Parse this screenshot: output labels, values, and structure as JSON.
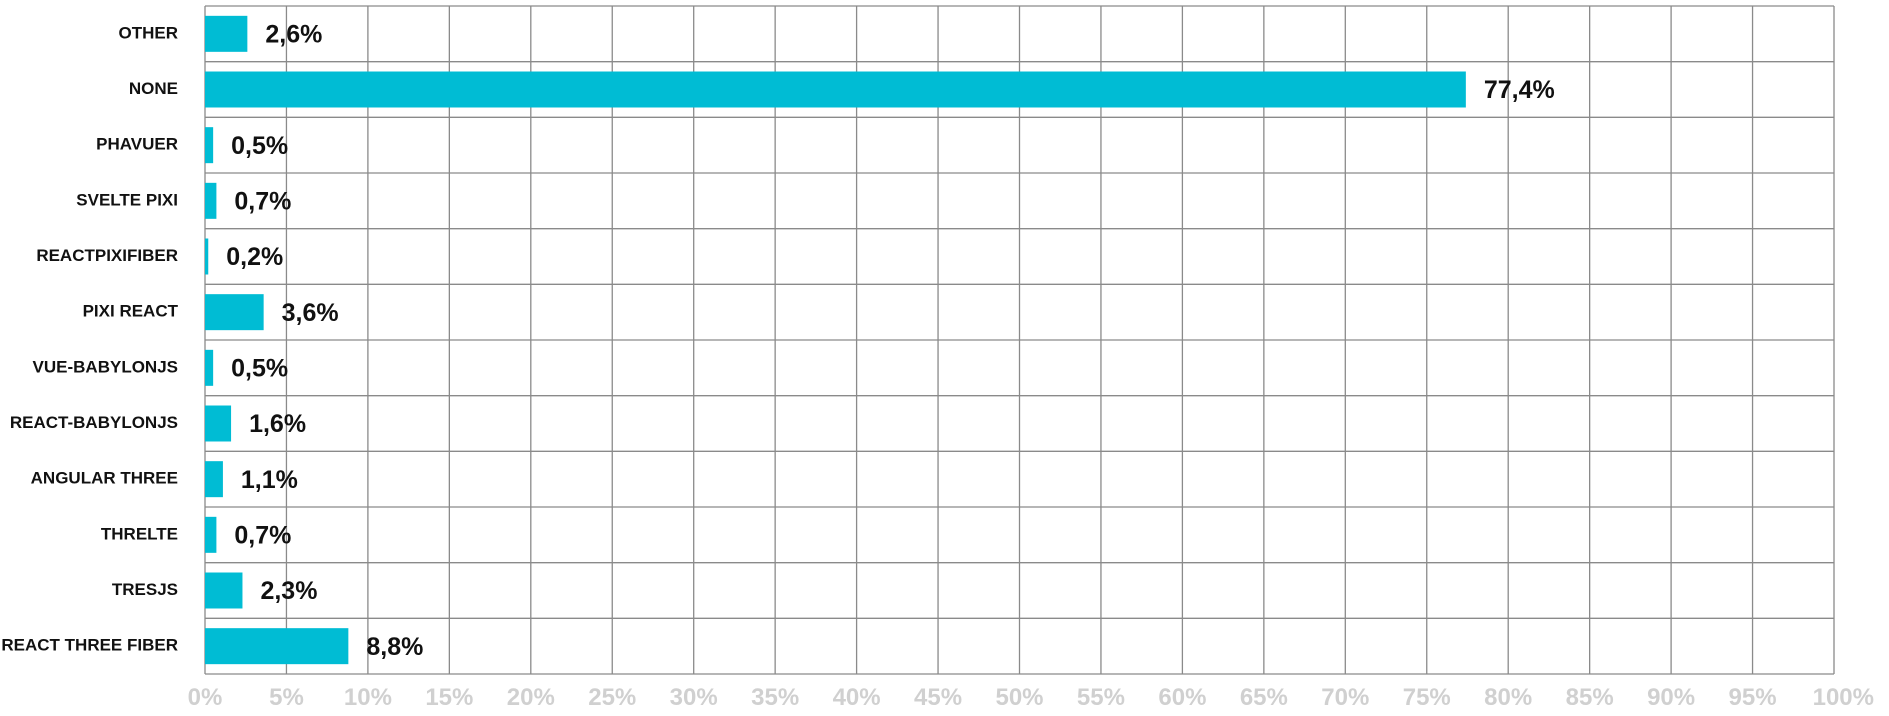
{
  "chart_data": {
    "type": "bar",
    "orientation": "horizontal",
    "categories": [
      "OTHER",
      "NONE",
      "PHAVUER",
      "SVELTE PIXI",
      "REACTPIXIFIBER",
      "PIXI REACT",
      "VUE-BABYLONJS",
      "REACT-BABYLONJS",
      "ANGULAR THREE",
      "THRELTE",
      "TRESJS",
      "REACT THREE FIBER"
    ],
    "values": [
      2.6,
      77.4,
      0.5,
      0.7,
      0.2,
      3.6,
      0.5,
      1.6,
      1.1,
      0.7,
      2.3,
      8.8
    ],
    "value_labels": [
      "2,6%",
      "77,4%",
      "0,5%",
      "0,7%",
      "0,2%",
      "3,6%",
      "0,5%",
      "1,6%",
      "1,1%",
      "0,7%",
      "2,3%",
      "8,8%"
    ],
    "xlim": [
      0,
      100
    ],
    "x_ticks": [
      0,
      5,
      10,
      15,
      20,
      25,
      30,
      35,
      40,
      45,
      50,
      55,
      60,
      65,
      70,
      75,
      80,
      85,
      90,
      95,
      100
    ],
    "x_tick_labels": [
      "0%",
      "5%",
      "10%",
      "15%",
      "20%",
      "25%",
      "30%",
      "35%",
      "40%",
      "45%",
      "50%",
      "55%",
      "60%",
      "65%",
      "70%",
      "75%",
      "80%",
      "85%",
      "90%",
      "95%",
      "100%"
    ],
    "grid": true,
    "legend": "none",
    "title": "",
    "xlabel": "",
    "ylabel": "",
    "colors": {
      "bar": "#00bcd4",
      "grid": "#8a8a8a",
      "tick_label": "#d0d0d0",
      "label": "#111111"
    }
  }
}
